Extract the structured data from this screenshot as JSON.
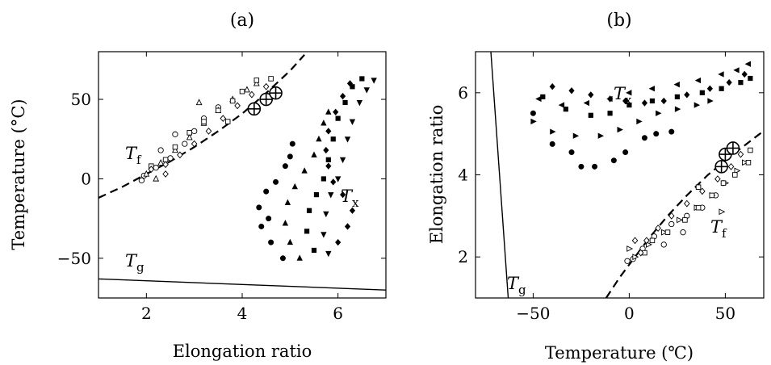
{
  "chart_data": [
    {
      "panel_label": "(a)",
      "type": "scatter",
      "xlabel": "Elongation ratio",
      "ylabel": "Temperature (°C)",
      "xlim": [
        1,
        7
      ],
      "ylim": [
        -75,
        80
      ],
      "xticks": [
        2,
        4,
        6
      ],
      "yticks": [
        -50,
        0,
        50
      ],
      "grid": false,
      "annotations": [
        {
          "main": "T",
          "sub": "f"
        },
        {
          "main": "T",
          "sub": "x"
        },
        {
          "main": "T",
          "sub": "g"
        }
      ],
      "curves": [
        {
          "name": "Tf",
          "style": "dashed",
          "points": [
            [
              1.0,
              -12
            ],
            [
              1.5,
              -5
            ],
            [
              2.0,
              3
            ],
            [
              2.5,
              11
            ],
            [
              3.0,
              20
            ],
            [
              3.5,
              30
            ],
            [
              4.0,
              41
            ],
            [
              4.5,
              54
            ],
            [
              5.0,
              68
            ],
            [
              5.3,
              78
            ]
          ]
        },
        {
          "name": "Tg",
          "style": "solid",
          "points": [
            [
              1.0,
              -63
            ],
            [
              7.0,
              -70
            ]
          ]
        }
      ],
      "series": [
        {
          "marker": "circle-open",
          "points": [
            [
              1.95,
              2
            ],
            [
              2.2,
              7
            ],
            [
              2.5,
              13
            ],
            [
              2.8,
              22
            ],
            [
              3.0,
              30
            ],
            [
              3.2,
              38
            ],
            [
              3.5,
              45
            ],
            [
              1.9,
              -1
            ],
            [
              2.3,
              18
            ],
            [
              2.6,
              28
            ]
          ]
        },
        {
          "marker": "triangle-open",
          "points": [
            [
              2.0,
              3
            ],
            [
              2.3,
              10
            ],
            [
              2.6,
              18
            ],
            [
              2.9,
              26
            ],
            [
              3.2,
              35
            ],
            [
              3.5,
              43
            ],
            [
              3.8,
              50
            ],
            [
              4.1,
              56
            ],
            [
              4.3,
              60
            ],
            [
              2.2,
              0
            ],
            [
              3.1,
              48
            ]
          ]
        },
        {
          "marker": "square-open",
          "points": [
            [
              2.4,
              12
            ],
            [
              2.6,
              20
            ],
            [
              2.9,
              29
            ],
            [
              3.2,
              36
            ],
            [
              3.5,
              43
            ],
            [
              3.8,
              49
            ],
            [
              4.0,
              55
            ],
            [
              4.3,
              62
            ],
            [
              4.6,
              63
            ],
            [
              2.1,
              8
            ],
            [
              3.7,
              36
            ]
          ]
        },
        {
          "marker": "diamond-open",
          "points": [
            [
              2.1,
              6
            ],
            [
              2.4,
              9
            ],
            [
              2.7,
              15
            ],
            [
              3.0,
              22
            ],
            [
              3.3,
              30
            ],
            [
              3.6,
              38
            ],
            [
              3.9,
              46
            ],
            [
              4.2,
              53
            ],
            [
              4.5,
              58
            ],
            [
              2.4,
              3
            ]
          ]
        },
        {
          "marker": "circle-plus-large",
          "points": [
            [
              4.25,
              44
            ],
            [
              4.5,
              50
            ],
            [
              4.7,
              54
            ]
          ]
        },
        {
          "marker": "circle-filled",
          "points": [
            [
              4.6,
              -40
            ],
            [
              4.4,
              -30
            ],
            [
              4.35,
              -18
            ],
            [
              4.5,
              -8
            ],
            [
              4.7,
              -2
            ],
            [
              4.9,
              8
            ],
            [
              5.0,
              14
            ],
            [
              5.05,
              22
            ],
            [
              4.85,
              -50
            ],
            [
              4.55,
              -25
            ]
          ]
        },
        {
          "marker": "triangle-filled",
          "points": [
            [
              5.2,
              -50
            ],
            [
              5.0,
              -40
            ],
            [
              4.9,
              -28
            ],
            [
              4.95,
              -15
            ],
            [
              5.1,
              -5
            ],
            [
              5.3,
              5
            ],
            [
              5.5,
              15
            ],
            [
              5.6,
              25
            ],
            [
              5.7,
              35
            ],
            [
              5.8,
              42
            ]
          ]
        },
        {
          "marker": "square-filled",
          "points": [
            [
              5.5,
              -45
            ],
            [
              5.35,
              -33
            ],
            [
              5.4,
              -20
            ],
            [
              5.55,
              -10
            ],
            [
              5.7,
              0
            ],
            [
              5.8,
              12
            ],
            [
              5.9,
              25
            ],
            [
              6.0,
              38
            ],
            [
              6.15,
              48
            ],
            [
              6.3,
              58
            ],
            [
              6.5,
              63
            ]
          ]
        },
        {
          "marker": "triangle-down-filled",
          "points": [
            [
              5.8,
              -47
            ],
            [
              5.7,
              -35
            ],
            [
              5.75,
              -22
            ],
            [
              5.85,
              -10
            ],
            [
              6.0,
              0
            ],
            [
              6.1,
              12
            ],
            [
              6.2,
              25
            ],
            [
              6.3,
              36
            ],
            [
              6.45,
              48
            ],
            [
              6.6,
              56
            ],
            [
              6.75,
              62
            ]
          ]
        },
        {
          "marker": "diamond-filled",
          "points": [
            [
              6.0,
              -40
            ],
            [
              6.2,
              -30
            ],
            [
              6.3,
              -20
            ],
            [
              6.1,
              -10
            ],
            [
              5.9,
              -2
            ],
            [
              5.8,
              8
            ],
            [
              5.75,
              18
            ],
            [
              5.8,
              30
            ],
            [
              5.95,
              42
            ],
            [
              6.1,
              52
            ],
            [
              6.25,
              60
            ]
          ]
        }
      ]
    },
    {
      "panel_label": "(b)",
      "type": "scatter",
      "xlabel": "Temperature (℃)",
      "ylabel": "Elongation ratio",
      "xlim": [
        -80,
        70
      ],
      "ylim": [
        1,
        7
      ],
      "xticks": [
        -50,
        0,
        50
      ],
      "yticks": [
        2,
        4,
        6
      ],
      "grid": false,
      "annotations": [
        {
          "main": "T",
          "sub": "x"
        },
        {
          "main": "T",
          "sub": "f"
        },
        {
          "main": "T",
          "sub": "g"
        }
      ],
      "curves": [
        {
          "name": "Tf",
          "style": "dashed",
          "points": [
            [
              -12,
              1.0
            ],
            [
              -5,
              1.5
            ],
            [
              3,
              2.0
            ],
            [
              11,
              2.5
            ],
            [
              20,
              3.0
            ],
            [
              30,
              3.5
            ],
            [
              41,
              4.0
            ],
            [
              54,
              4.5
            ],
            [
              68,
              5.0
            ],
            [
              78,
              5.3
            ]
          ]
        },
        {
          "name": "Tg",
          "style": "solid",
          "points": [
            [
              -72,
              7.0
            ],
            [
              -63,
              1.0
            ]
          ]
        }
      ],
      "series": [
        {
          "marker": "circle-open",
          "points": [
            [
              2,
              1.95
            ],
            [
              7,
              2.2
            ],
            [
              13,
              2.5
            ],
            [
              22,
              2.8
            ],
            [
              30,
              3.0
            ],
            [
              38,
              3.2
            ],
            [
              45,
              3.5
            ],
            [
              -1,
              1.9
            ],
            [
              18,
              2.3
            ],
            [
              28,
              2.6
            ]
          ]
        },
        {
          "marker": "triangle-right-open",
          "points": [
            [
              3,
              2.0
            ],
            [
              10,
              2.3
            ],
            [
              18,
              2.6
            ],
            [
              26,
              2.9
            ],
            [
              35,
              3.2
            ],
            [
              43,
              3.5
            ],
            [
              50,
              3.8
            ],
            [
              56,
              4.1
            ],
            [
              60,
              4.3
            ],
            [
              0,
              2.2
            ],
            [
              48,
              3.1
            ]
          ]
        },
        {
          "marker": "square-open",
          "points": [
            [
              12,
              2.4
            ],
            [
              20,
              2.6
            ],
            [
              29,
              2.9
            ],
            [
              36,
              3.2
            ],
            [
              43,
              3.5
            ],
            [
              49,
              3.8
            ],
            [
              55,
              4.0
            ],
            [
              62,
              4.3
            ],
            [
              63,
              4.6
            ],
            [
              8,
              2.1
            ],
            [
              36,
              3.7
            ]
          ]
        },
        {
          "marker": "diamond-open",
          "points": [
            [
              6,
              2.1
            ],
            [
              9,
              2.4
            ],
            [
              15,
              2.7
            ],
            [
              22,
              3.0
            ],
            [
              30,
              3.3
            ],
            [
              38,
              3.6
            ],
            [
              46,
              3.9
            ],
            [
              53,
              4.2
            ],
            [
              58,
              4.5
            ],
            [
              3,
              2.4
            ]
          ]
        },
        {
          "marker": "circle-plus-large",
          "points": [
            [
              48,
              4.2
            ],
            [
              50,
              4.5
            ],
            [
              54,
              4.65
            ]
          ]
        },
        {
          "marker": "circle-filled",
          "points": [
            [
              -40,
              4.75
            ],
            [
              -30,
              4.55
            ],
            [
              -18,
              4.2
            ],
            [
              -8,
              4.35
            ],
            [
              -2,
              4.55
            ],
            [
              8,
              4.9
            ],
            [
              14,
              5.0
            ],
            [
              22,
              5.05
            ],
            [
              -50,
              5.5
            ],
            [
              -25,
              4.2
            ]
          ]
        },
        {
          "marker": "triangle-right-filled",
          "points": [
            [
              -50,
              5.3
            ],
            [
              -40,
              5.05
            ],
            [
              -28,
              4.95
            ],
            [
              -15,
              4.95
            ],
            [
              -5,
              5.1
            ],
            [
              5,
              5.3
            ],
            [
              15,
              5.5
            ],
            [
              25,
              5.6
            ],
            [
              35,
              5.7
            ],
            [
              42,
              5.8
            ]
          ]
        },
        {
          "marker": "square-filled",
          "points": [
            [
              -45,
              5.9
            ],
            [
              -33,
              5.6
            ],
            [
              -20,
              5.45
            ],
            [
              -10,
              5.5
            ],
            [
              0,
              5.7
            ],
            [
              12,
              5.8
            ],
            [
              25,
              5.9
            ],
            [
              38,
              6.0
            ],
            [
              48,
              6.1
            ],
            [
              58,
              6.25
            ],
            [
              63,
              6.35
            ]
          ]
        },
        {
          "marker": "triangle-left-filled",
          "points": [
            [
              -47,
              5.85
            ],
            [
              -35,
              5.7
            ],
            [
              -22,
              5.75
            ],
            [
              -10,
              5.85
            ],
            [
              0,
              6.0
            ],
            [
              12,
              6.1
            ],
            [
              25,
              6.2
            ],
            [
              36,
              6.3
            ],
            [
              48,
              6.45
            ],
            [
              56,
              6.55
            ],
            [
              62,
              6.7
            ]
          ]
        },
        {
          "marker": "diamond-filled",
          "points": [
            [
              -40,
              6.15
            ],
            [
              -30,
              6.05
            ],
            [
              -20,
              5.95
            ],
            [
              -10,
              5.85
            ],
            [
              -2,
              5.8
            ],
            [
              8,
              5.75
            ],
            [
              18,
              5.8
            ],
            [
              30,
              5.95
            ],
            [
              42,
              6.1
            ],
            [
              52,
              6.25
            ],
            [
              60,
              6.45
            ]
          ]
        }
      ]
    }
  ]
}
